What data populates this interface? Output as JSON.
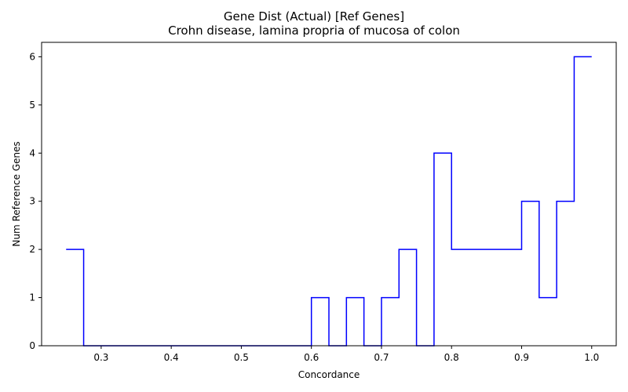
{
  "chart_data": {
    "type": "line",
    "drawstyle": "steps-post",
    "title": "Gene Dist (Actual) [Ref Genes]",
    "subtitle": "Crohn disease, lamina propria of mucosa of colon",
    "xlabel": "Concordance",
    "ylabel": "Num Reference Genes",
    "xlim": [
      0.215,
      1.035
    ],
    "ylim": [
      0,
      6.3
    ],
    "xticks": [
      0.3,
      0.4,
      0.5,
      0.6,
      0.7,
      0.8,
      0.9,
      1.0
    ],
    "xtick_labels": [
      "0.3",
      "0.4",
      "0.5",
      "0.6",
      "0.7",
      "0.8",
      "0.9",
      "1.0"
    ],
    "yticks": [
      0,
      1,
      2,
      3,
      4,
      5,
      6
    ],
    "ytick_labels": [
      "0",
      "1",
      "2",
      "3",
      "4",
      "5",
      "6"
    ],
    "grid": false,
    "color": "#0000ff",
    "series": [
      {
        "x": [
          0.25,
          0.275,
          0.3,
          0.325,
          0.35,
          0.375,
          0.4,
          0.425,
          0.45,
          0.475,
          0.5,
          0.525,
          0.55,
          0.575,
          0.6,
          0.625,
          0.65,
          0.675,
          0.7,
          0.725,
          0.75,
          0.775,
          0.8,
          0.825,
          0.85,
          0.875,
          0.9,
          0.925,
          0.95,
          0.975,
          1.0
        ],
        "y": [
          2,
          0,
          0,
          0,
          0,
          0,
          0,
          0,
          0,
          0,
          0,
          0,
          0,
          0,
          1,
          0,
          1,
          0,
          1,
          2,
          0,
          4,
          2,
          2,
          2,
          2,
          3,
          1,
          3,
          6,
          6
        ]
      }
    ]
  }
}
